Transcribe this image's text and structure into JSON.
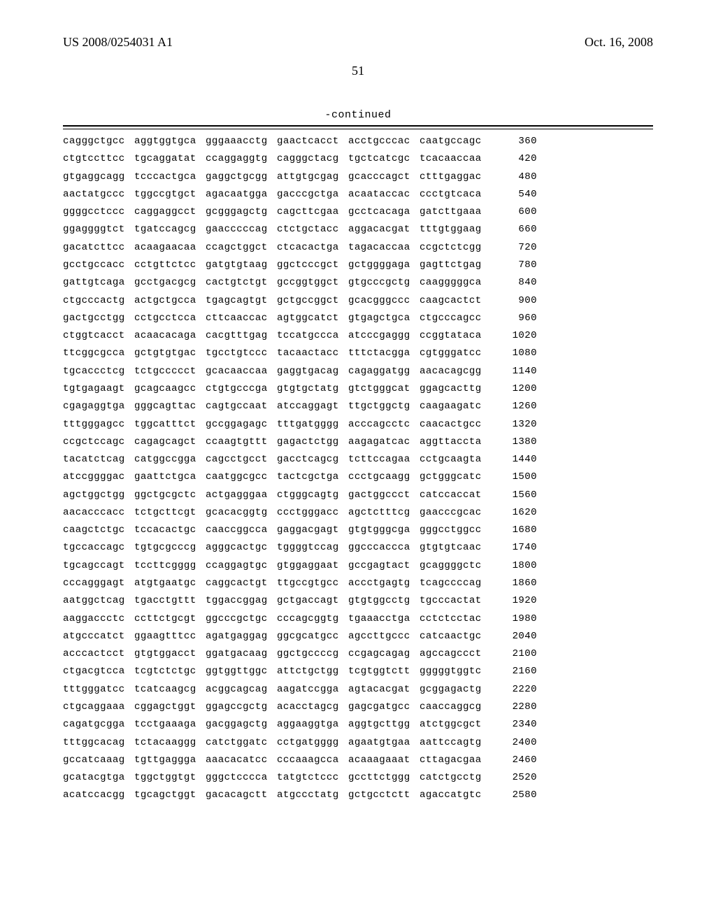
{
  "header": {
    "pub_number": "US 2008/0254031 A1",
    "pub_date": "Oct. 16, 2008"
  },
  "page_number": "51",
  "continued_label": "-continued",
  "font": {
    "body": "Times New Roman",
    "mono": "Courier New",
    "seq_fontsize": 14.1,
    "header_fontsize": 18
  },
  "colors": {
    "text": "#000000",
    "background": "#ffffff",
    "rule": "#000000"
  },
  "sequence_rows": [
    {
      "g": [
        "cagggctgcc",
        "aggtggtgca",
        "gggaaacctg",
        "gaactcacct",
        "acctgcccac",
        "caatgccagc"
      ],
      "n": "360"
    },
    {
      "g": [
        "ctgtccttcc",
        "tgcaggatat",
        "ccaggaggtg",
        "cagggctacg",
        "tgctcatcgc",
        "tcacaaccaa"
      ],
      "n": "420"
    },
    {
      "g": [
        "gtgaggcagg",
        "tcccactgca",
        "gaggctgcgg",
        "attgtgcgag",
        "gcacccagct",
        "ctttgaggac"
      ],
      "n": "480"
    },
    {
      "g": [
        "aactatgccc",
        "tggccgtgct",
        "agacaatgga",
        "gacccgctga",
        "acaataccac",
        "ccctgtcaca"
      ],
      "n": "540"
    },
    {
      "g": [
        "ggggcctccc",
        "caggaggcct",
        "gcgggagctg",
        "cagcttcgaa",
        "gcctcacaga",
        "gatcttgaaa"
      ],
      "n": "600"
    },
    {
      "g": [
        "ggaggggtct",
        "tgatccagcg",
        "gaacccccag",
        "ctctgctacc",
        "aggacacgat",
        "tttgtggaag"
      ],
      "n": "660"
    },
    {
      "g": [
        "gacatcttcc",
        "acaagaacaa",
        "ccagctggct",
        "ctcacactga",
        "tagacaccaa",
        "ccgctctcgg"
      ],
      "n": "720"
    },
    {
      "g": [
        "gcctgccacc",
        "cctgttctcc",
        "gatgtgtaag",
        "ggctcccgct",
        "gctggggaga",
        "gagttctgag"
      ],
      "n": "780"
    },
    {
      "g": [
        "gattgtcaga",
        "gcctgacgcg",
        "cactgtctgt",
        "gccggtggct",
        "gtgcccgctg",
        "caagggggca"
      ],
      "n": "840"
    },
    {
      "g": [
        "ctgcccactg",
        "actgctgcca",
        "tgagcagtgt",
        "gctgccggct",
        "gcacgggccc",
        "caagcactct"
      ],
      "n": "900"
    },
    {
      "g": [
        "gactgcctgg",
        "cctgcctcca",
        "cttcaaccac",
        "agtggcatct",
        "gtgagctgca",
        "ctgcccagcc"
      ],
      "n": "960"
    },
    {
      "g": [
        "ctggtcacct",
        "acaacacaga",
        "cacgtttgag",
        "tccatgccca",
        "atcccgaggg",
        "ccggtataca"
      ],
      "n": "1020"
    },
    {
      "g": [
        "ttcggcgcca",
        "gctgtgtgac",
        "tgcctgtccc",
        "tacaactacc",
        "tttctacgga",
        "cgtgggatcc"
      ],
      "n": "1080"
    },
    {
      "g": [
        "tgcaccctcg",
        "tctgccccct",
        "gcacaaccaa",
        "gaggtgacag",
        "cagaggatgg",
        "aacacagcgg"
      ],
      "n": "1140"
    },
    {
      "g": [
        "tgtgagaagt",
        "gcagcaagcc",
        "ctgtgcccga",
        "gtgtgctatg",
        "gtctgggcat",
        "ggagcacttg"
      ],
      "n": "1200"
    },
    {
      "g": [
        "cgagaggtga",
        "gggcagttac",
        "cagtgccaat",
        "atccaggagt",
        "ttgctggctg",
        "caagaagatc"
      ],
      "n": "1260"
    },
    {
      "g": [
        "tttgggagcc",
        "tggcatttct",
        "gccggagagc",
        "tttgatgggg",
        "acccagcctc",
        "caacactgcc"
      ],
      "n": "1320"
    },
    {
      "g": [
        "ccgctccagc",
        "cagagcagct",
        "ccaagtgttt",
        "gagactctgg",
        "aagagatcac",
        "aggttaccta"
      ],
      "n": "1380"
    },
    {
      "g": [
        "tacatctcag",
        "catggccgga",
        "cagcctgcct",
        "gacctcagcg",
        "tcttccagaa",
        "cctgcaagta"
      ],
      "n": "1440"
    },
    {
      "g": [
        "atccggggac",
        "gaattctgca",
        "caatggcgcc",
        "tactcgctga",
        "ccctgcaagg",
        "gctgggcatc"
      ],
      "n": "1500"
    },
    {
      "g": [
        "agctggctgg",
        "ggctgcgctc",
        "actgagggaa",
        "ctgggcagtg",
        "gactggccct",
        "catccaccat"
      ],
      "n": "1560"
    },
    {
      "g": [
        "aacacccacc",
        "tctgcttcgt",
        "gcacacggtg",
        "ccctgggacc",
        "agctctttcg",
        "gaacccgcac"
      ],
      "n": "1620"
    },
    {
      "g": [
        "caagctctgc",
        "tccacactgc",
        "caaccggcca",
        "gaggacgagt",
        "gtgtgggcga",
        "gggcctggcc"
      ],
      "n": "1680"
    },
    {
      "g": [
        "tgccaccagc",
        "tgtgcgcccg",
        "agggcactgc",
        "tggggtccag",
        "ggcccaccca",
        "gtgtgtcaac"
      ],
      "n": "1740"
    },
    {
      "g": [
        "tgcagccagt",
        "tccttcgggg",
        "ccaggagtgc",
        "gtggaggaat",
        "gccgagtact",
        "gcaggggctc"
      ],
      "n": "1800"
    },
    {
      "g": [
        "cccagggagt",
        "atgtgaatgc",
        "caggcactgt",
        "ttgccgtgcc",
        "accctgagtg",
        "tcagccccag"
      ],
      "n": "1860"
    },
    {
      "g": [
        "aatggctcag",
        "tgacctgttt",
        "tggaccggag",
        "gctgaccagt",
        "gtgtggcctg",
        "tgcccactat"
      ],
      "n": "1920"
    },
    {
      "g": [
        "aaggaccctc",
        "ccttctgcgt",
        "ggcccgctgc",
        "cccagcggtg",
        "tgaaacctga",
        "cctctcctac"
      ],
      "n": "1980"
    },
    {
      "g": [
        "atgcccatct",
        "ggaagtttcc",
        "agatgaggag",
        "ggcgcatgcc",
        "agccttgccc",
        "catcaactgc"
      ],
      "n": "2040"
    },
    {
      "g": [
        "acccactcct",
        "gtgtggacct",
        "ggatgacaag",
        "ggctgccccg",
        "ccgagcagag",
        "agccagccct"
      ],
      "n": "2100"
    },
    {
      "g": [
        "ctgacgtcca",
        "tcgtctctgc",
        "ggtggttggc",
        "attctgctgg",
        "tcgtggtctt",
        "gggggtggtc"
      ],
      "n": "2160"
    },
    {
      "g": [
        "tttgggatcc",
        "tcatcaagcg",
        "acggcagcag",
        "aagatccgga",
        "agtacacgat",
        "gcggagactg"
      ],
      "n": "2220"
    },
    {
      "g": [
        "ctgcaggaaa",
        "cggagctggt",
        "ggagccgctg",
        "acacctagcg",
        "gagcgatgcc",
        "caaccaggcg"
      ],
      "n": "2280"
    },
    {
      "g": [
        "cagatgcgga",
        "tcctgaaaga",
        "gacggagctg",
        "aggaaggtga",
        "aggtgcttgg",
        "atctggcgct"
      ],
      "n": "2340"
    },
    {
      "g": [
        "tttggcacag",
        "tctacaaggg",
        "catctggatc",
        "cctgatgggg",
        "agaatgtgaa",
        "aattccagtg"
      ],
      "n": "2400"
    },
    {
      "g": [
        "gccatcaaag",
        "tgttgaggga",
        "aaacacatcc",
        "cccaaagcca",
        "acaaagaaat",
        "cttagacgaa"
      ],
      "n": "2460"
    },
    {
      "g": [
        "gcatacgtga",
        "tggctggtgt",
        "gggctcccca",
        "tatgtctccc",
        "gccttctggg",
        "catctgcctg"
      ],
      "n": "2520"
    },
    {
      "g": [
        "acatccacgg",
        "tgcagctggt",
        "gacacagctt",
        "atgccctatg",
        "gctgcctctt",
        "agaccatgtc"
      ],
      "n": "2580"
    }
  ]
}
